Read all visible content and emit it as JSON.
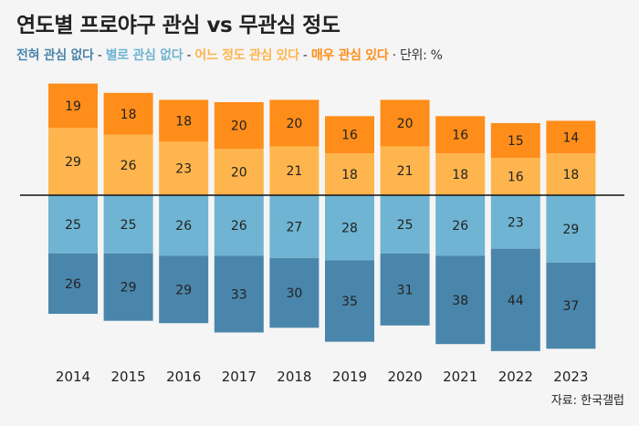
{
  "title": "연도별 프로야구 관심 vs 무관심 정도",
  "legend": {
    "items": [
      {
        "label": "전혀 관심 없다",
        "color": "#4a86ab"
      },
      {
        "label": "별로 관심 없다",
        "color": "#6fb4d2"
      },
      {
        "label": "어느 정도 관심 있다",
        "color": "#ffb54d"
      },
      {
        "label": "매우 관심 있다",
        "color": "#ff8d1a"
      }
    ],
    "separator": " - ",
    "unit_prefix": " · ",
    "unit": "단위: %"
  },
  "source": "자료: 한국갤럽",
  "chart_data": {
    "type": "bar",
    "stacked": "diverging",
    "title": "연도별 프로야구 관심 vs 무관심 정도",
    "unit": "%",
    "categories": [
      "2014",
      "2015",
      "2016",
      "2017",
      "2018",
      "2019",
      "2020",
      "2021",
      "2022",
      "2023"
    ],
    "series": [
      {
        "name": "매우 관심 있다",
        "direction": "up",
        "color": "#ff8d1a",
        "values": [
          19,
          18,
          18,
          20,
          20,
          16,
          20,
          16,
          15,
          14
        ]
      },
      {
        "name": "어느 정도 관심 있다",
        "direction": "up",
        "color": "#ffb54d",
        "values": [
          29,
          26,
          23,
          20,
          21,
          18,
          21,
          18,
          16,
          18
        ]
      },
      {
        "name": "별로 관심 없다",
        "direction": "down",
        "color": "#6fb4d2",
        "values": [
          25,
          25,
          26,
          26,
          27,
          28,
          25,
          26,
          23,
          29
        ]
      },
      {
        "name": "전혀 관심 없다",
        "direction": "down",
        "color": "#4a86ab",
        "values": [
          26,
          29,
          29,
          33,
          30,
          35,
          31,
          38,
          44,
          37
        ]
      }
    ],
    "axis_line_color": "#111111"
  }
}
